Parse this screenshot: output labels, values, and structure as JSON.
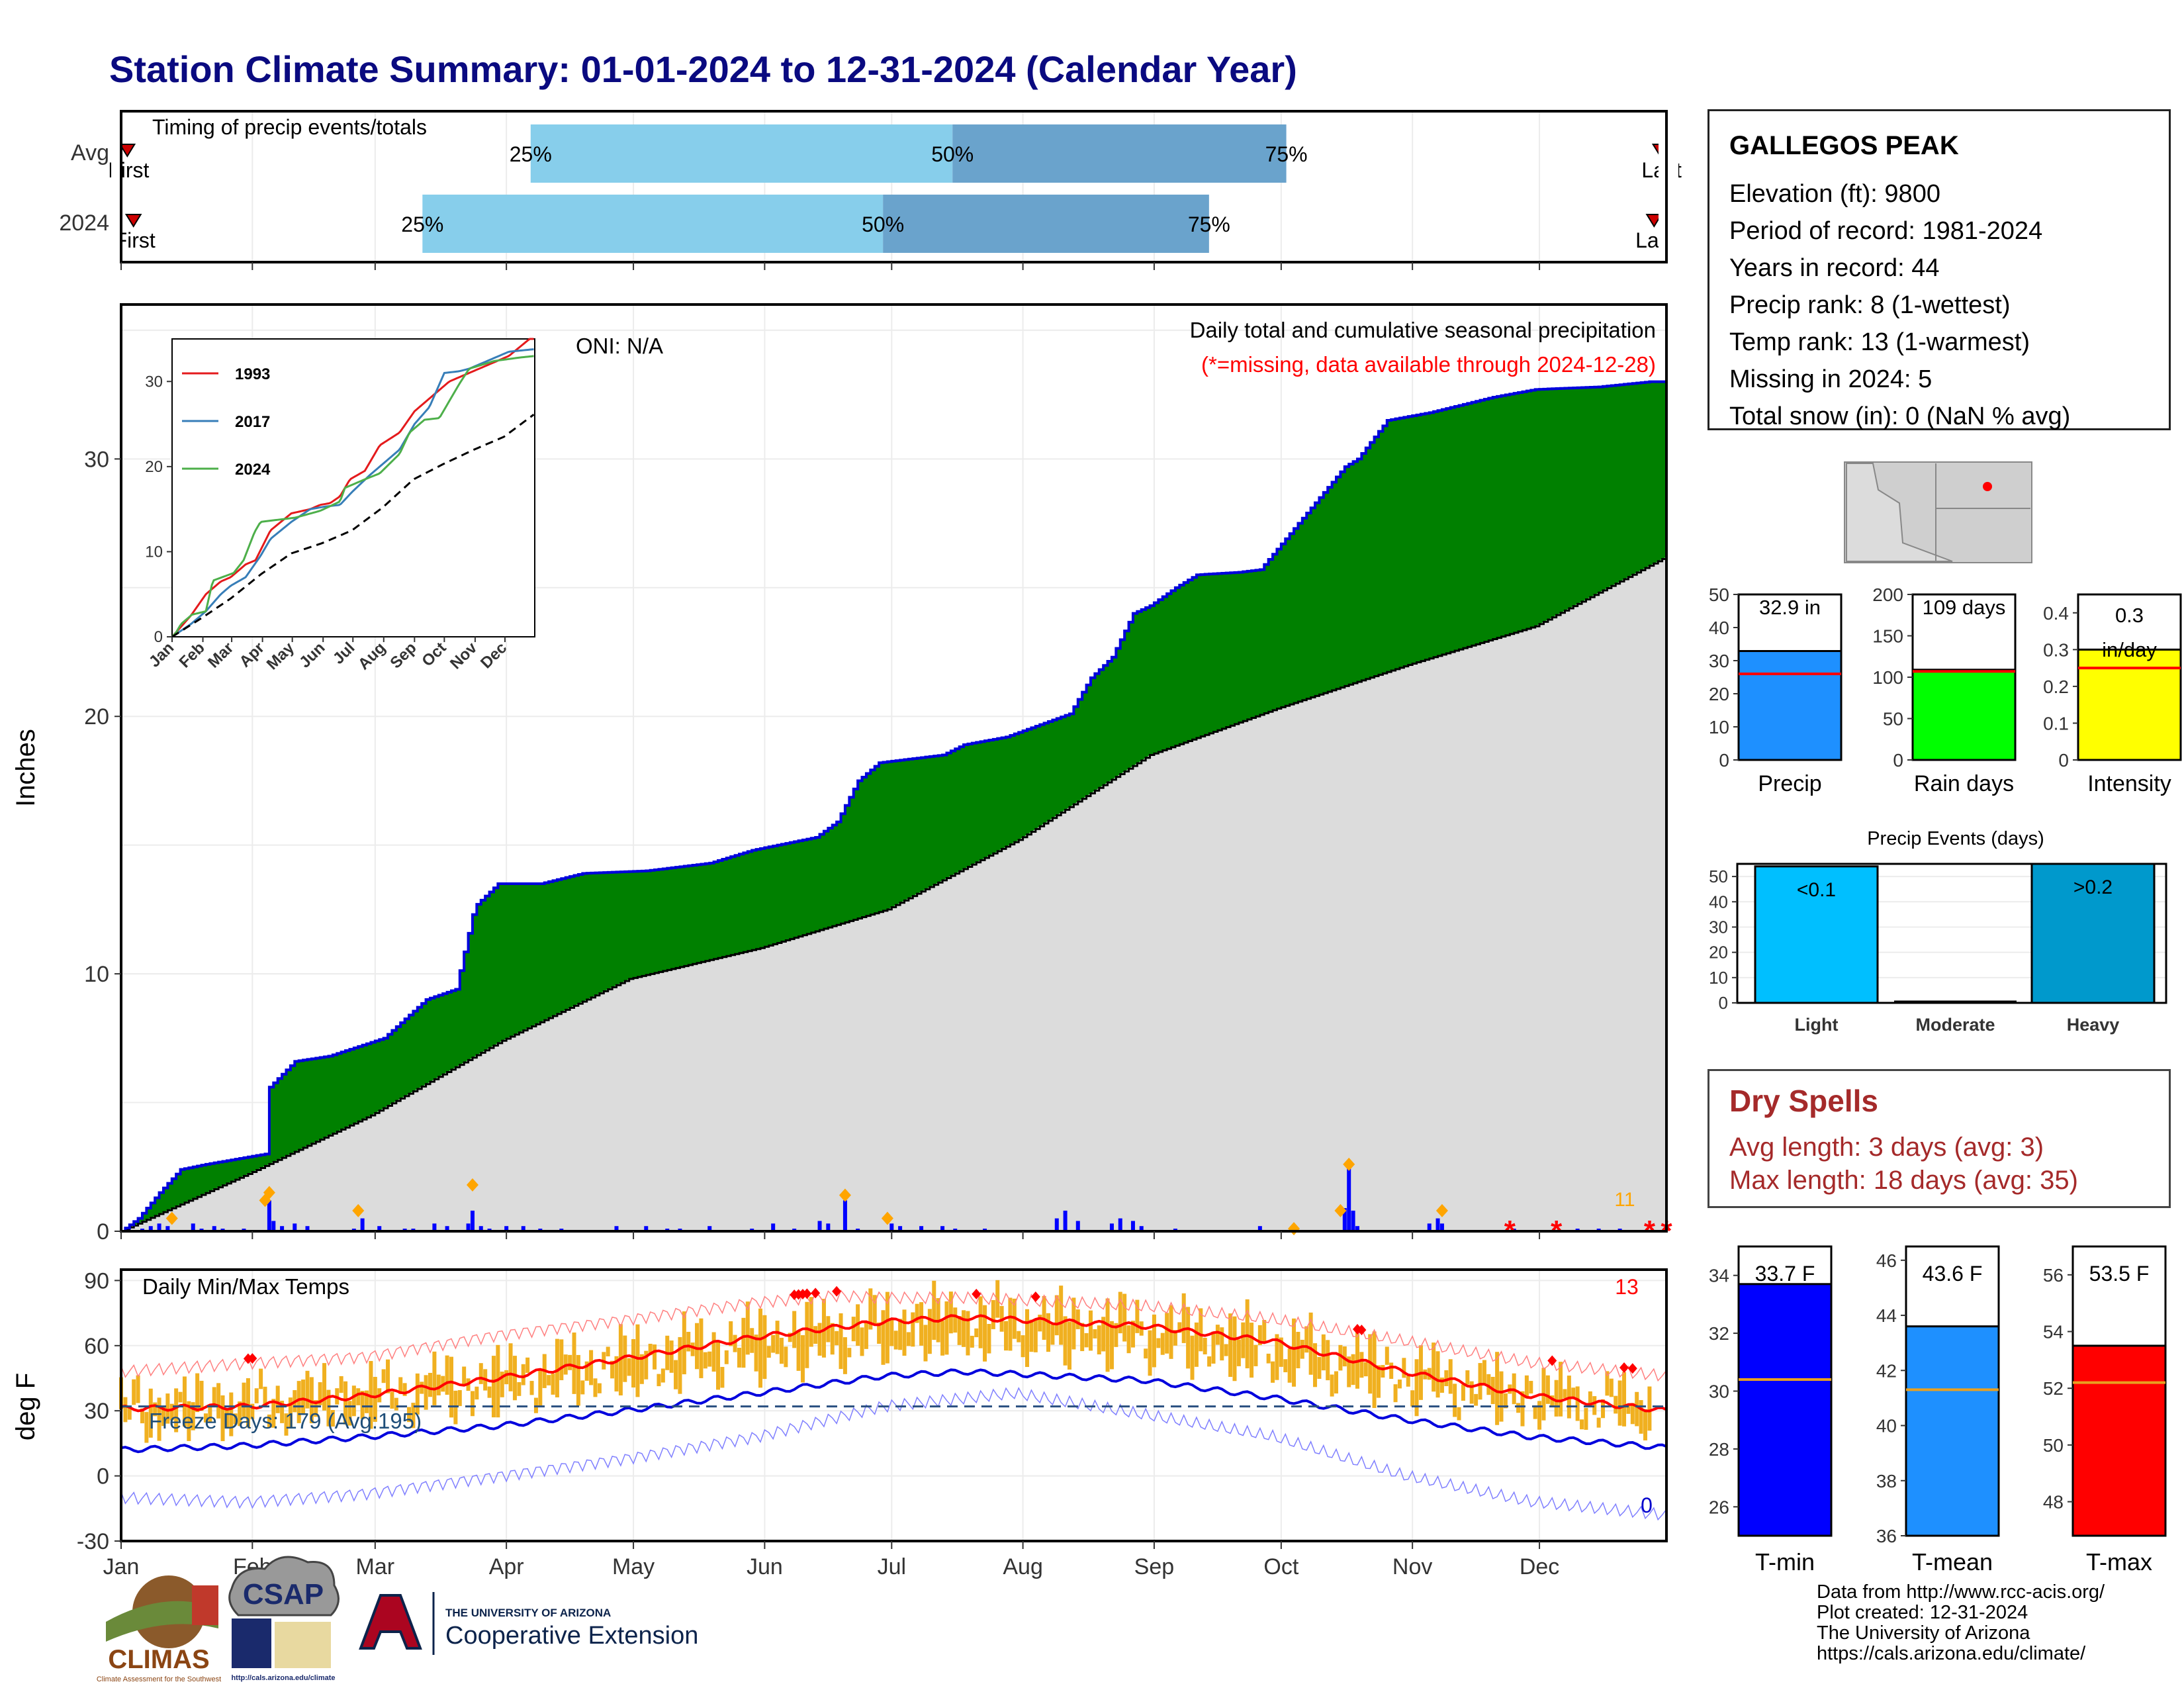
{
  "title": "Station Climate Summary: 01-01-2024 to 12-31-2024 (Calendar Year)",
  "timing_panel": {
    "title": "Timing of precip events/totals",
    "rows": [
      {
        "label": "Avg",
        "first_label": "First",
        "last_label": "Last",
        "p25": "25%",
        "p50": "50%",
        "p75": "75%",
        "p25_frac": 0.265,
        "p50_frac": 0.538,
        "p75_frac": 0.754,
        "first_frac": 0.004,
        "last_frac": 0.996
      },
      {
        "label": "2024",
        "first_label": "First",
        "last_label": "Last",
        "p25": "25%",
        "p50": "50%",
        "p75": "75%",
        "p25_frac": 0.195,
        "p50_frac": 0.493,
        "p75_frac": 0.704,
        "first_frac": 0.008,
        "last_frac": 0.992
      }
    ],
    "colors": {
      "q1": "#87ceeb",
      "q2": "#6aa3cc",
      "marker": "#cc0000"
    }
  },
  "months": [
    "Jan",
    "Feb",
    "Mar",
    "Apr",
    "May",
    "Jun",
    "Jul",
    "Aug",
    "Sep",
    "Oct",
    "Nov",
    "Dec"
  ],
  "precip_panel": {
    "ylabel": "Inches",
    "yticks": [
      0,
      10,
      20,
      30
    ],
    "ylim": [
      0,
      36
    ],
    "oni": "ONI: N/A",
    "subtitle": "Daily total and cumulative seasonal precipitation",
    "missing_note": "(*=missing, data available through 2024-12-28)",
    "missing_count": "11",
    "colors": {
      "above_avg": "#008000",
      "avg_fill": "#dcdcdc",
      "line": "#0000dd",
      "daily": "#0000ff",
      "marker": "#ffa500",
      "missing": "#ff0000"
    }
  },
  "chart_data": [
    {
      "type": "area",
      "name": "cumulative-precip",
      "xlabel": "",
      "ylabel": "Inches",
      "x_domain": "day of year 1-366",
      "ylim": [
        0,
        36
      ],
      "series": [
        {
          "name": "2024 cumulative",
          "x": [
            1,
            5,
            10,
            15,
            21,
            35,
            36,
            42,
            50,
            63,
            73,
            80,
            84,
            85,
            90,
            100,
            110,
            125,
            140,
            150,
            165,
            170,
            175,
            180,
            195,
            200,
            210,
            225,
            230,
            235,
            240,
            244,
            250,
            255,
            265,
            270,
            290,
            293,
            300,
            310,
            325,
            335,
            350,
            362,
            366
          ],
          "values": [
            0,
            0.5,
            1.5,
            2.4,
            2.6,
            3.0,
            5.6,
            6.6,
            6.8,
            7.5,
            9.0,
            9.4,
            12.3,
            12.7,
            13.5,
            13.5,
            13.9,
            14.0,
            14.3,
            14.8,
            15.3,
            15.9,
            17.5,
            18.2,
            18.5,
            18.9,
            19.2,
            20.1,
            21.5,
            22.3,
            24.0,
            24.3,
            25.0,
            25.5,
            25.6,
            25.7,
            29.7,
            30.0,
            31.5,
            31.8,
            32.4,
            32.7,
            32.8,
            33.0,
            33.0
          ]
        },
        {
          "name": "Average cumulative",
          "x": [
            1,
            32,
            60,
            91,
            121,
            152,
            182,
            213,
            244,
            274,
            305,
            335,
            366
          ],
          "values": [
            0,
            2.3,
            4.5,
            7.4,
            9.8,
            11.0,
            12.5,
            15.2,
            18.5,
            20.3,
            22.0,
            23.5,
            26.2
          ]
        }
      ]
    },
    {
      "type": "bar",
      "name": "daily-precip",
      "x": [
        6,
        8,
        10,
        12,
        18,
        20,
        23,
        25,
        30,
        36,
        37,
        39,
        42,
        45,
        56,
        58,
        62,
        68,
        70,
        75,
        78,
        83,
        84,
        86,
        88,
        92,
        96,
        100,
        105,
        118,
        125,
        130,
        133,
        140,
        150,
        155,
        160,
        166,
        168,
        172,
        175,
        183,
        185,
        190,
        195,
        198,
        205,
        222,
        224,
        227,
        235,
        237,
        240,
        242,
        250,
        270,
        290,
        291,
        292,
        293,
        310,
        312,
        313,
        330,
        345,
        350,
        355
      ],
      "values": [
        0.1,
        0.2,
        0.3,
        0.2,
        0.3,
        0.1,
        0.2,
        0.1,
        0.1,
        1.2,
        0.4,
        0.2,
        0.3,
        0.2,
        0.1,
        0.5,
        0.2,
        0.1,
        0.1,
        0.3,
        0.2,
        0.3,
        0.8,
        0.2,
        0.1,
        0.2,
        0.2,
        0.1,
        0.1,
        0.2,
        0.2,
        0.1,
        0.1,
        0.2,
        0.1,
        0.3,
        0.1,
        0.4,
        0.3,
        1.2,
        0.1,
        0.3,
        0.2,
        0.2,
        0.2,
        0.1,
        0.1,
        0.5,
        0.8,
        0.4,
        0.3,
        0.5,
        0.4,
        0.2,
        0.1,
        0.2,
        0.9,
        2.6,
        0.8,
        0.2,
        0.3,
        0.5,
        0.3,
        0.1,
        0.1,
        0.1,
        0.1
      ],
      "marked_days": [
        13,
        35,
        36,
        57,
        84,
        172,
        182,
        278,
        289,
        291,
        313
      ],
      "marked_values": [
        0.5,
        1.2,
        1.5,
        0.8,
        1.8,
        1.4,
        0.5,
        0.1,
        0.8,
        2.6,
        0.8
      ],
      "missing_days": [
        329,
        340,
        362,
        366
      ]
    },
    {
      "type": "line",
      "name": "inset-cumulative-comparison",
      "ylim": [
        0,
        35
      ],
      "yticks": [
        0,
        10,
        20,
        30
      ],
      "x_domain": "day of year 1-366",
      "series": [
        {
          "name": "1993",
          "color": "#e41a1c",
          "x": [
            1,
            20,
            35,
            50,
            60,
            75,
            85,
            100,
            121,
            140,
            150,
            160,
            170,
            180,
            195,
            210,
            230,
            245,
            260,
            280,
            300,
            320,
            340,
            366
          ],
          "values": [
            0,
            2.5,
            5.0,
            6.5,
            7.0,
            8.5,
            9.0,
            12.5,
            14.5,
            15.0,
            15.5,
            15.7,
            16.5,
            18.5,
            19.5,
            22.5,
            24.0,
            26.5,
            28.0,
            30.0,
            31.0,
            32.0,
            33.0,
            35.5
          ]
        },
        {
          "name": "2017",
          "color": "#377eb8",
          "x": [
            1,
            20,
            35,
            50,
            60,
            75,
            90,
            100,
            121,
            140,
            155,
            170,
            182,
            200,
            215,
            230,
            245,
            260,
            275,
            290,
            300,
            320,
            340,
            366
          ],
          "values": [
            0,
            1.5,
            3.0,
            5.0,
            6.0,
            7.0,
            9.5,
            11.5,
            13.5,
            15.0,
            15.3,
            15.5,
            17.0,
            19.0,
            20.5,
            22.0,
            25.0,
            27.0,
            31.0,
            31.2,
            31.5,
            32.5,
            33.5,
            33.8
          ]
        },
        {
          "name": "2024",
          "color": "#4daf4a",
          "x": [
            1,
            5,
            10,
            21,
            35,
            42,
            63,
            73,
            84,
            90,
            125,
            150,
            170,
            175,
            195,
            210,
            230,
            240,
            255,
            270,
            290,
            300,
            325,
            350,
            366
          ],
          "values": [
            0,
            0.5,
            1.5,
            2.6,
            3.0,
            6.6,
            7.5,
            9.0,
            12.3,
            13.5,
            14.0,
            14.8,
            15.9,
            17.5,
            18.5,
            19.2,
            21.5,
            24.0,
            25.5,
            25.7,
            29.7,
            31.5,
            32.4,
            32.8,
            33.0
          ]
        },
        {
          "name": "Average",
          "color": "#000000",
          "x": [
            1,
            32,
            60,
            91,
            121,
            152,
            182,
            213,
            244,
            274,
            305,
            335,
            366
          ],
          "values": [
            0,
            2.3,
            4.5,
            7.4,
            9.8,
            11.0,
            12.5,
            15.2,
            18.5,
            20.3,
            22.0,
            23.5,
            26.2
          ]
        }
      ]
    },
    {
      "type": "line",
      "name": "daily-temps",
      "ylabel": "deg F",
      "ylim": [
        -30,
        95
      ],
      "yticks": [
        -30,
        0,
        30,
        60,
        90
      ],
      "series": [
        {
          "name": "record high",
          "color": "#ff8080",
          "x": [
            1,
            31,
            59,
            90,
            120,
            151,
            170,
            181,
            200,
            212,
            243,
            273,
            304,
            334,
            366
          ],
          "values": [
            48,
            52,
            55,
            65,
            72,
            80,
            83,
            82,
            82,
            81,
            78,
            72,
            62,
            52,
            46
          ]
        },
        {
          "name": "average high",
          "color": "#ff0000",
          "x": [
            1,
            31,
            59,
            90,
            120,
            151,
            181,
            200,
            212,
            243,
            273,
            304,
            334,
            366
          ],
          "values": [
            31,
            32,
            37,
            45,
            54,
            64,
            71,
            73,
            72,
            69,
            62,
            48,
            37,
            30
          ]
        },
        {
          "name": "average low",
          "color": "#0000dd",
          "x": [
            1,
            31,
            59,
            90,
            120,
            151,
            181,
            200,
            212,
            243,
            273,
            304,
            334,
            366
          ],
          "values": [
            12,
            14,
            18,
            23,
            30,
            38,
            46,
            48,
            47,
            44,
            36,
            26,
            18,
            13
          ]
        },
        {
          "name": "record low",
          "color": "#8080ff",
          "x": [
            1,
            31,
            59,
            90,
            120,
            151,
            181,
            212,
            243,
            273,
            304,
            334,
            366
          ],
          "values": [
            -10,
            -12,
            -8,
            0,
            8,
            18,
            32,
            38,
            28,
            18,
            0,
            -12,
            -18
          ]
        }
      ],
      "freeze_line": 32,
      "freeze_days": "Freeze Days: 179 (Avg:195)",
      "panel_title": "Daily Min/Max Temps",
      "record_high_count": "13",
      "record_low_count": "0"
    },
    {
      "type": "bar",
      "name": "season-precip-bars",
      "categories": [
        "Precip",
        "Rain days",
        "Intensity"
      ],
      "values": [
        32.9,
        109,
        0.3
      ],
      "averages": [
        26,
        107,
        0.25
      ],
      "ylims": [
        [
          0,
          50
        ],
        [
          0,
          200
        ],
        [
          0,
          0.45
        ]
      ],
      "yticks": [
        [
          0,
          10,
          20,
          30,
          40,
          50
        ],
        [
          0,
          50,
          100,
          150,
          200
        ],
        [
          0.0,
          0.1,
          0.2,
          0.3,
          0.4
        ]
      ],
      "labels": [
        "32.9 in",
        "109 days",
        "0.3 in/day"
      ],
      "colors": [
        "#1e90ff",
        "#00ff00",
        "#ffff00"
      ]
    },
    {
      "type": "bar",
      "name": "precip-events",
      "title": "Precip Events (days)",
      "categories": [
        "Light",
        "Moderate",
        "Heavy"
      ],
      "values": [
        54,
        0,
        55
      ],
      "labels": [
        "<0.1",
        "",
        ">0.2"
      ],
      "ylim": [
        0,
        55
      ],
      "yticks": [
        0,
        10,
        20,
        30,
        40,
        50
      ],
      "colors": [
        "#00bfff",
        "#000000",
        "#0099cc"
      ]
    },
    {
      "type": "bar",
      "name": "season-temp-bars",
      "categories": [
        "T-min",
        "T-mean",
        "T-max"
      ],
      "values": [
        33.7,
        43.6,
        53.5
      ],
      "averages": [
        30.4,
        41.3,
        52.2
      ],
      "ylims": [
        [
          25,
          35
        ],
        [
          36,
          46.5
        ],
        [
          46.8,
          57
        ]
      ],
      "yticks": [
        [
          26,
          28,
          30,
          32,
          34
        ],
        [
          36,
          38,
          40,
          42,
          44,
          46
        ],
        [
          48,
          50,
          52,
          54,
          56
        ]
      ],
      "labels": [
        "33.7 F",
        "43.6 F",
        "53.5 F"
      ],
      "colors": [
        "#0000ff",
        "#1e90ff",
        "#ff0000"
      ]
    }
  ],
  "station": {
    "name": "GALLEGOS PEAK",
    "rows": [
      "Elevation (ft): 9800",
      "Period of record: 1981-2024",
      "Years in record: 44",
      "Precip rank: 8 (1-wettest)",
      "Temp rank: 13 (1-warmest)",
      "Missing in 2024: 5",
      "Total snow (in): 0 (NaN % avg)"
    ]
  },
  "dry_spells": {
    "title": "Dry Spells",
    "avg": "Avg length: 3 days (avg: 3)",
    "max": "Max length: 18 days (avg: 35)"
  },
  "logos": {
    "climas": "CLIMAS",
    "climas_sub": "Climate Assessment for the Southwest",
    "csap": "CSAP",
    "csap_url": "http://cals.arizona.edu/climate",
    "ua_top": "THE UNIVERSITY OF ARIZONA",
    "ua_bottom": "Cooperative Extension"
  },
  "credits": [
    "Data from http://www.rcc-acis.org/",
    "Plot created: 12-31-2024",
    "The University of Arizona",
    "https://cals.arizona.edu/climate/"
  ]
}
